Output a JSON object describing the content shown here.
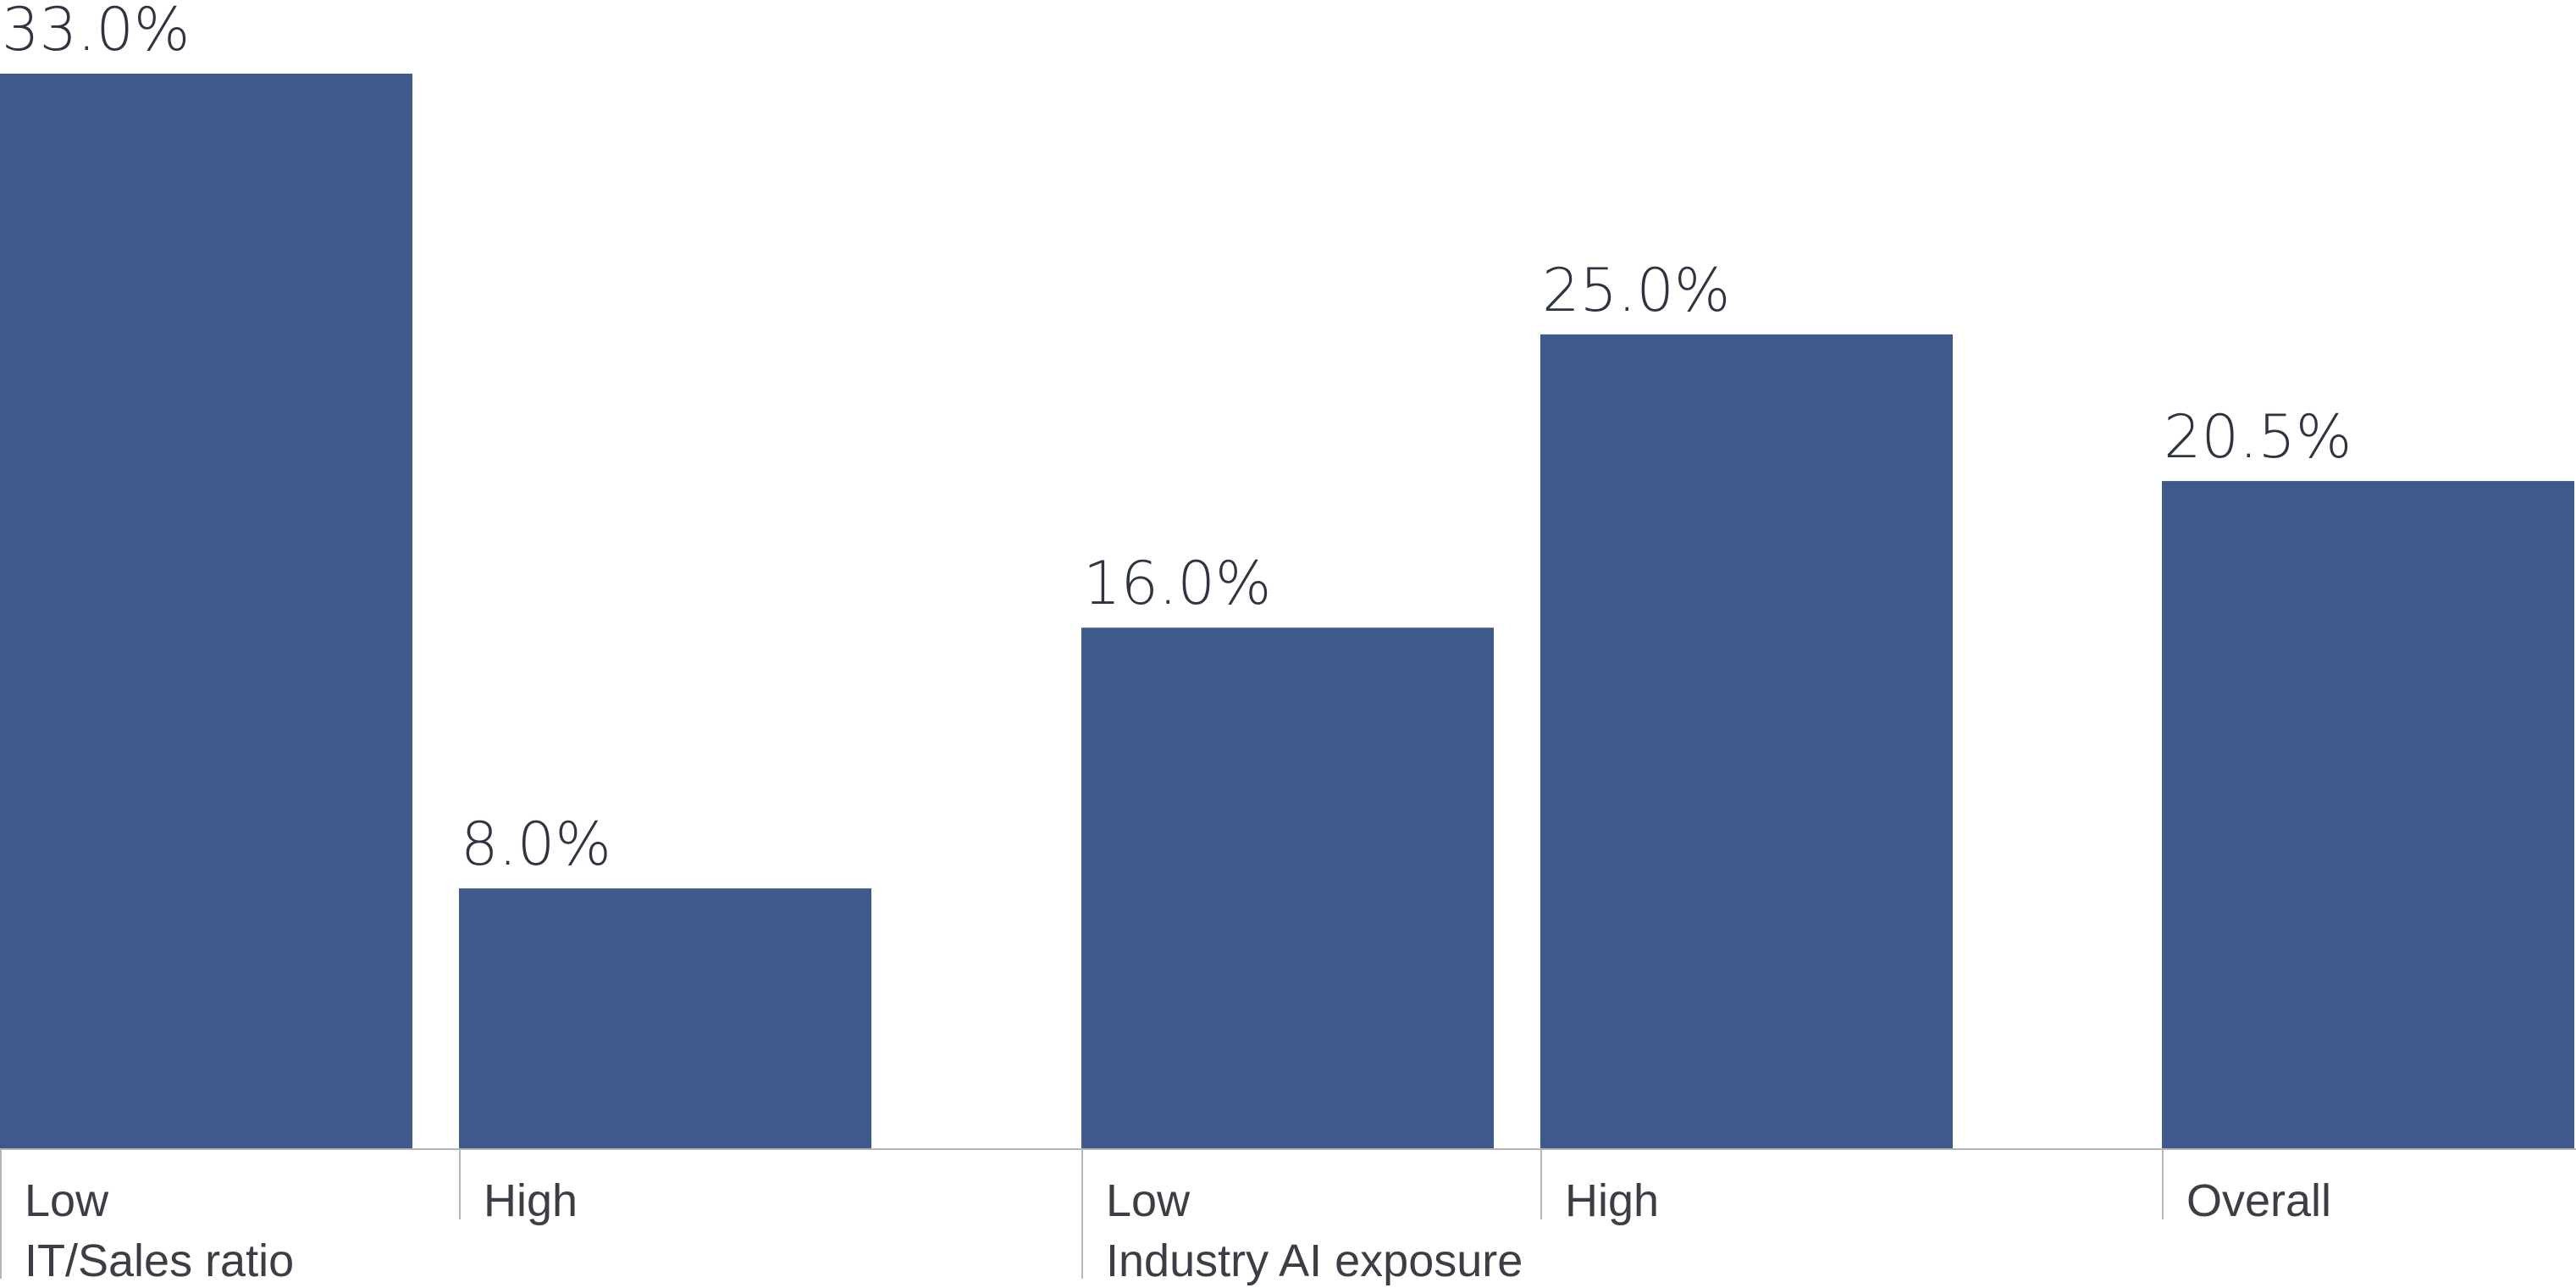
{
  "chart_data": {
    "type": "bar",
    "groups": [
      {
        "label": "IT/Sales ratio",
        "categories": [
          "Low",
          "High"
        ],
        "values": [
          33.0,
          8.0
        ],
        "value_labels": [
          "33.0%",
          "8.0%"
        ]
      },
      {
        "label": "Industry AI exposure",
        "categories": [
          "Low",
          "High"
        ],
        "values": [
          16.0,
          25.0
        ],
        "value_labels": [
          "16.0%",
          "25.0%"
        ]
      },
      {
        "label": "",
        "categories": [
          "Overall"
        ],
        "values": [
          20.5
        ],
        "value_labels": [
          "20.5%"
        ]
      }
    ],
    "title": "",
    "xlabel": "",
    "ylabel": "",
    "ylim": [
      0,
      33
    ],
    "grid": false,
    "legend": "none",
    "bar_color": "#3d5a8a",
    "axis_color": "#b5b5b5"
  }
}
